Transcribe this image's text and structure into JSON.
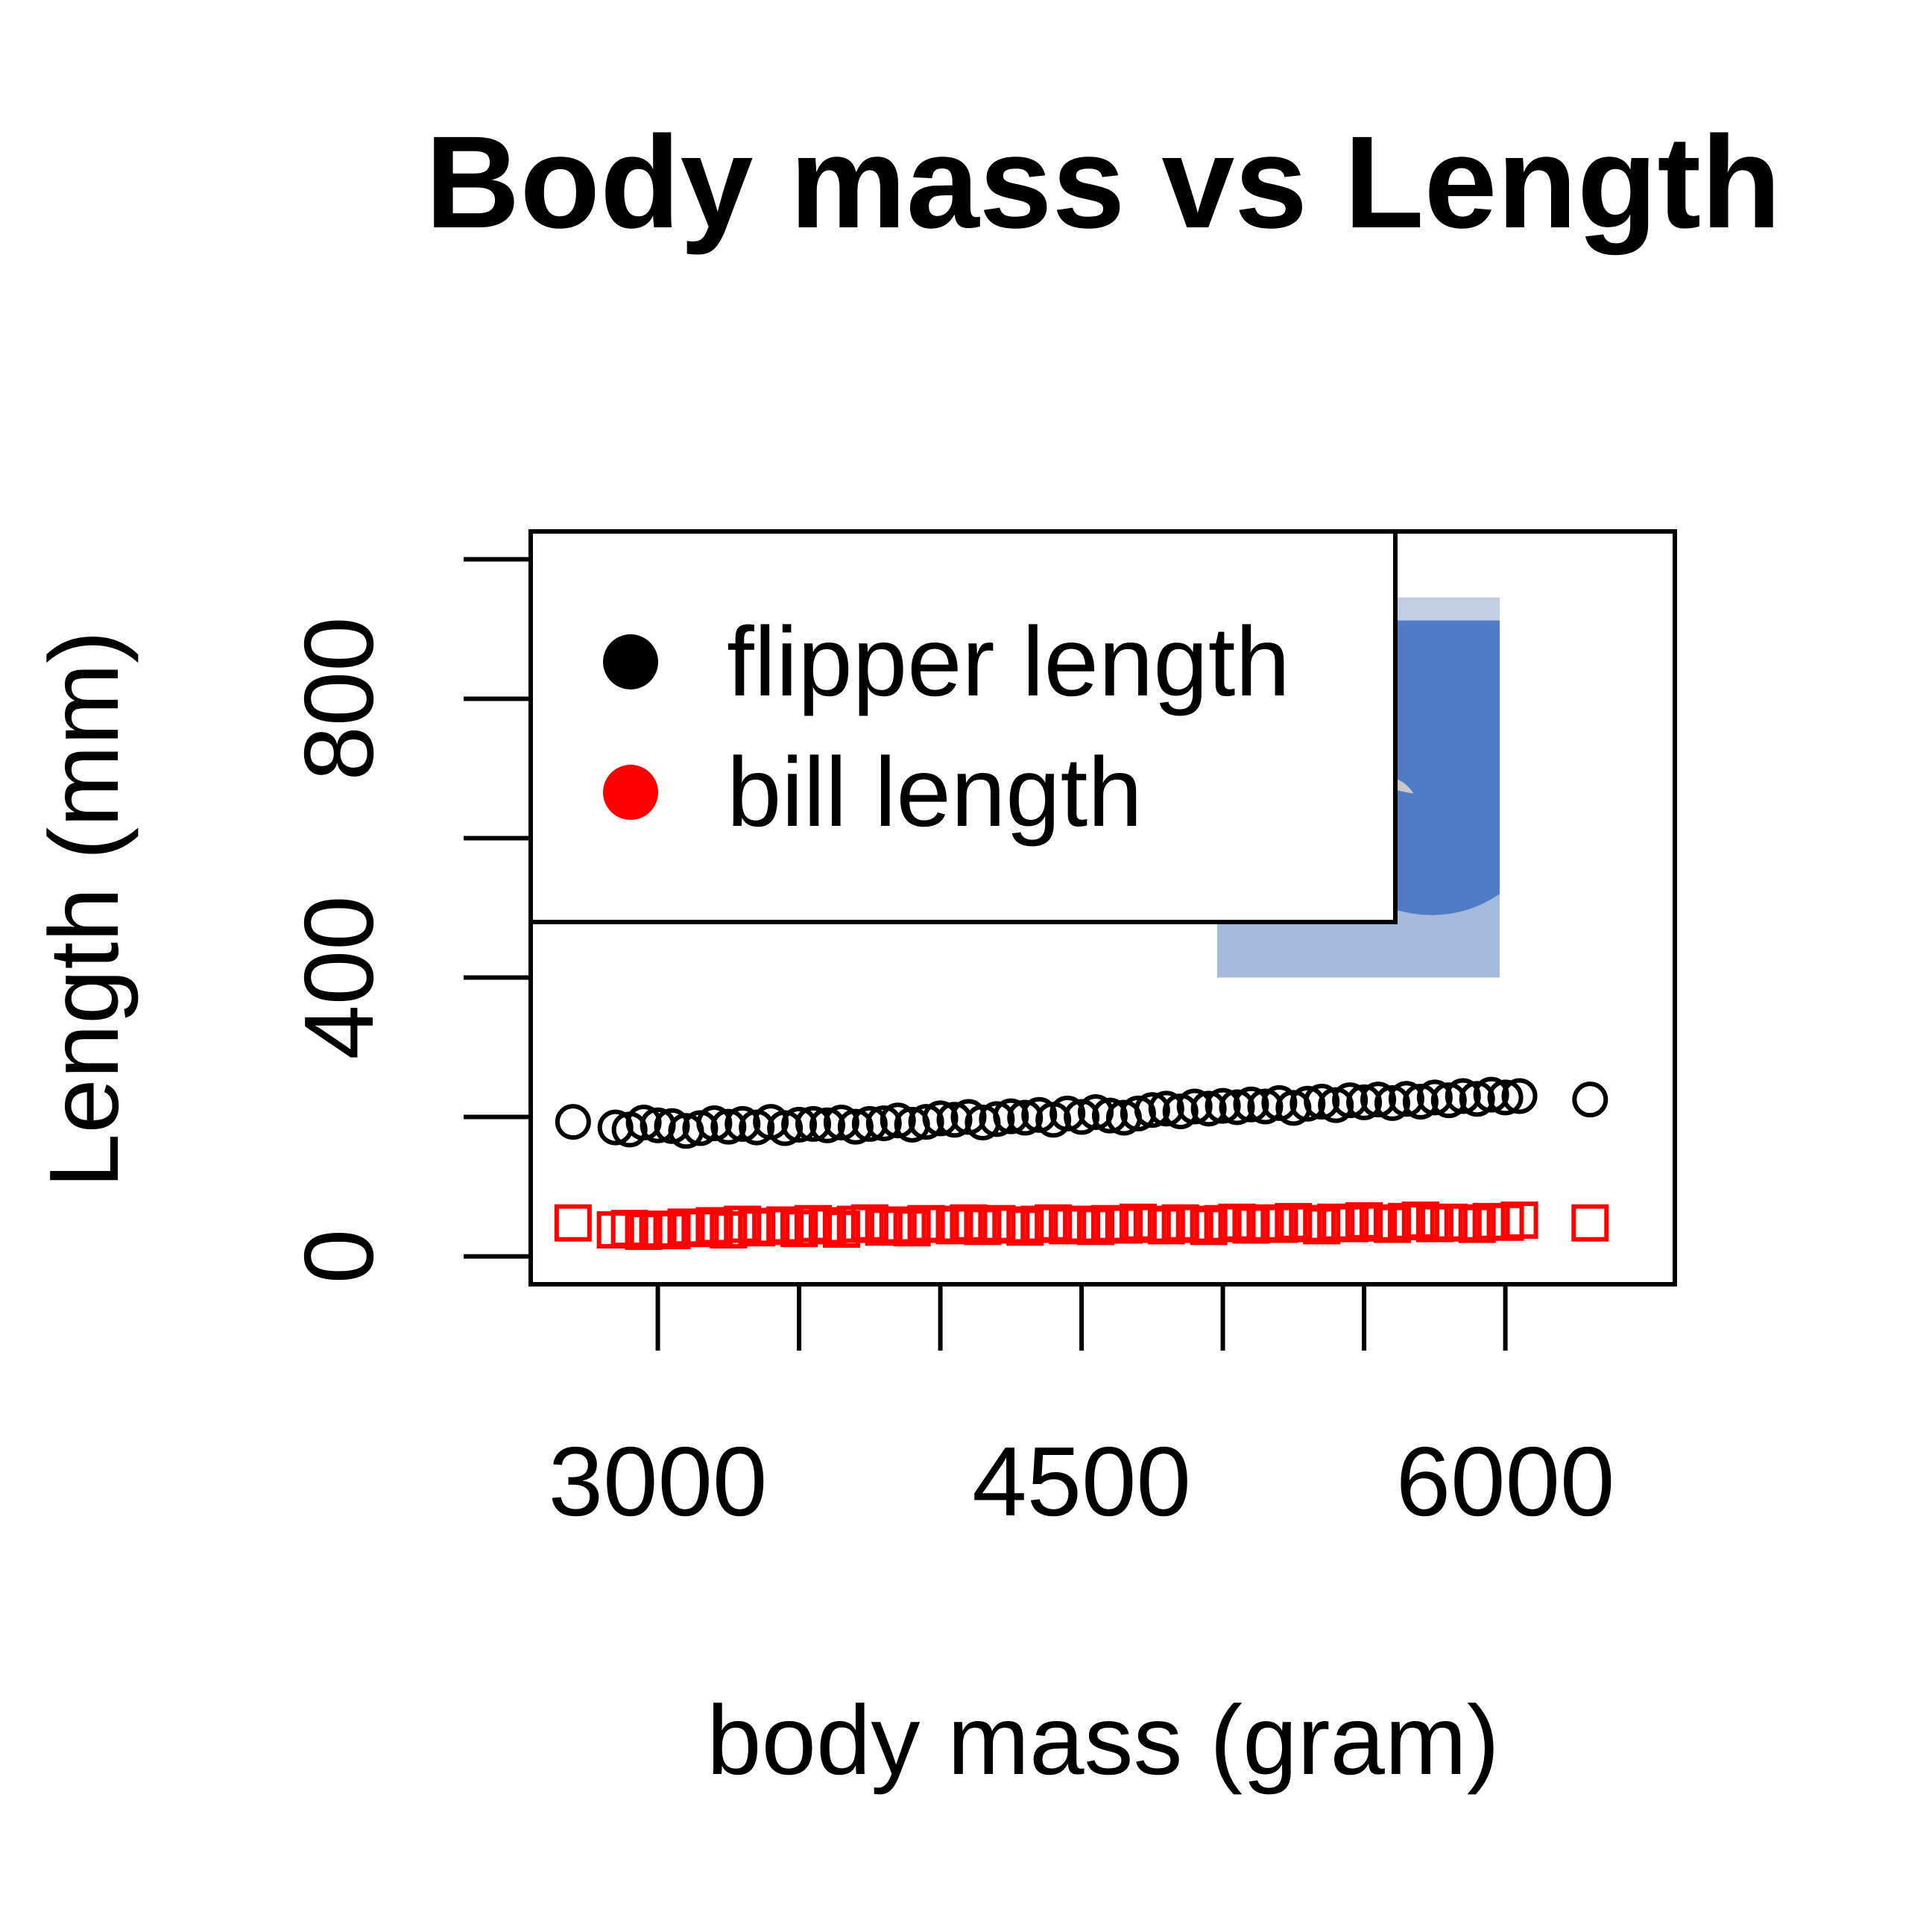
{
  "chart_data": {
    "type": "scatter",
    "title": "Body mass vs Length",
    "xlabel": "body mass (gram)",
    "ylabel": "Length (mm)",
    "xlim": [
      2550,
      6600
    ],
    "ylim": [
      -40,
      1040
    ],
    "x_ticks": [
      3000,
      3500,
      4000,
      4500,
      5000,
      5500,
      6000
    ],
    "x_tick_labels": [
      "3000",
      "",
      "",
      "4500",
      "",
      "",
      "6000"
    ],
    "y_ticks": [
      0,
      200,
      400,
      600,
      800,
      1000
    ],
    "y_tick_labels": [
      "0",
      "",
      "400",
      "",
      "800",
      ""
    ],
    "grid": false,
    "legend": {
      "position": "top-left",
      "entries": [
        {
          "label": "flipper length",
          "color": "#000000",
          "marker": "filled-circle"
        },
        {
          "label": "bill length",
          "color": "#ff0000",
          "marker": "filled-circle"
        }
      ]
    },
    "background_image": {
      "description": "photo",
      "x_range": [
        4980,
        5980
      ],
      "y_range": [
        400,
        945
      ],
      "colors": [
        "#4a74c4",
        "#6a8fcf",
        "#dfe4ea"
      ]
    },
    "series": [
      {
        "name": "flipper length",
        "color": "#000000",
        "marker": "open-circle",
        "x": [
          2700,
          2850,
          2900,
          2950,
          3000,
          3050,
          3100,
          3150,
          3200,
          3250,
          3300,
          3350,
          3400,
          3450,
          3500,
          3550,
          3600,
          3650,
          3700,
          3750,
          3800,
          3850,
          3900,
          3950,
          4000,
          4050,
          4100,
          4150,
          4200,
          4250,
          4300,
          4350,
          4400,
          4450,
          4500,
          4550,
          4600,
          4650,
          4700,
          4750,
          4800,
          4850,
          4900,
          4950,
          5000,
          5050,
          5100,
          5150,
          5200,
          5250,
          5300,
          5350,
          5400,
          5450,
          5500,
          5550,
          5600,
          5650,
          5700,
          5750,
          5800,
          5850,
          5900,
          5950,
          6000,
          6050,
          6300
        ],
        "y": [
          193,
          185,
          182,
          192,
          188,
          187,
          180,
          184,
          191,
          186,
          190,
          185,
          193,
          184,
          189,
          190,
          188,
          192,
          186,
          190,
          191,
          195,
          189,
          193,
          198,
          196,
          200,
          192,
          197,
          201,
          199,
          203,
          196,
          205,
          200,
          207,
          202,
          199,
          205,
          210,
          212,
          208,
          215,
          212,
          216,
          214,
          218,
          215,
          220,
          213,
          219,
          222,
          217,
          224,
          221,
          225,
          220,
          226,
          222,
          228,
          224,
          230,
          226,
          232,
          228,
          230,
          225
        ]
      },
      {
        "name": "bill length",
        "color": "#ff0000",
        "marker": "open-square",
        "x": [
          2700,
          2850,
          2900,
          2950,
          3000,
          3050,
          3100,
          3150,
          3200,
          3250,
          3300,
          3350,
          3400,
          3450,
          3500,
          3550,
          3600,
          3650,
          3700,
          3750,
          3800,
          3850,
          3900,
          3950,
          4000,
          4050,
          4100,
          4150,
          4200,
          4250,
          4300,
          4350,
          4400,
          4450,
          4500,
          4550,
          4600,
          4650,
          4700,
          4750,
          4800,
          4850,
          4900,
          4950,
          5000,
          5050,
          5100,
          5150,
          5200,
          5250,
          5300,
          5350,
          5400,
          5450,
          5500,
          5550,
          5600,
          5650,
          5700,
          5750,
          5800,
          5850,
          5900,
          5950,
          6000,
          6050,
          6300
        ],
        "y": [
          48,
          38,
          40,
          36,
          39,
          37,
          42,
          40,
          44,
          38,
          46,
          41,
          43,
          45,
          40,
          47,
          44,
          39,
          46,
          48,
          42,
          45,
          41,
          47,
          46,
          44,
          48,
          43,
          47,
          45,
          42,
          46,
          48,
          44,
          46,
          43,
          47,
          45,
          49,
          46,
          44,
          48,
          46,
          43,
          47,
          49,
          45,
          48,
          46,
          50,
          47,
          44,
          49,
          47,
          51,
          48,
          46,
          50,
          52,
          47,
          49,
          48,
          46,
          50,
          49,
          52,
          48
        ]
      }
    ]
  }
}
